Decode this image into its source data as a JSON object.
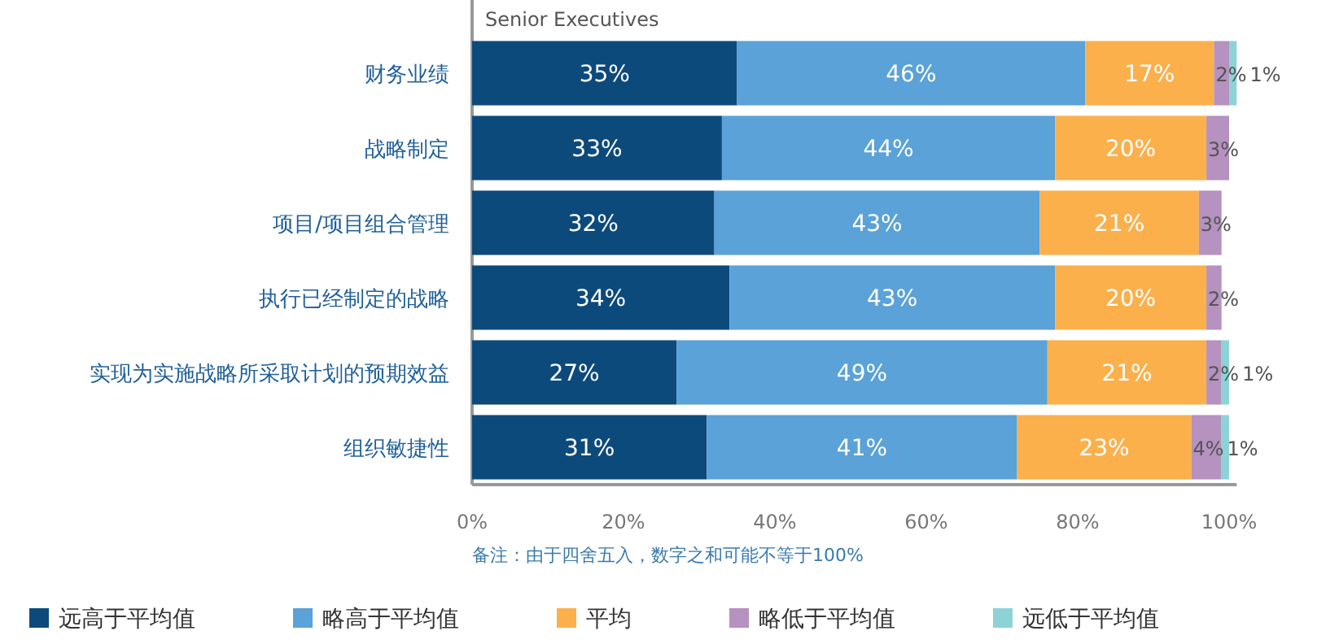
{
  "chart_data": {
    "type": "bar",
    "orientation": "horizontal",
    "stacked": true,
    "title": "Senior Executives",
    "categories": [
      "财务业绩",
      "战略制定",
      "项目/项目组合管理",
      "执行已经制定的战略",
      "实现为实施战略所采取计划的预期效益",
      "组织敏捷性"
    ],
    "series": [
      {
        "name": "远高于平均值",
        "color": "#0d4a7c",
        "values": [
          35,
          33,
          32,
          34,
          27,
          31
        ],
        "value_labels": [
          "35%",
          "33%",
          "32%",
          "34%",
          "27%",
          "31%"
        ]
      },
      {
        "name": "略高于平均值",
        "color": "#5aa2d8",
        "values": [
          46,
          44,
          43,
          43,
          49,
          41
        ],
        "value_labels": [
          "46%",
          "44%",
          "43%",
          "43%",
          "49%",
          "41%"
        ]
      },
      {
        "name": "平均",
        "color": "#fbb04c",
        "values": [
          17,
          20,
          21,
          20,
          21,
          23
        ],
        "value_labels": [
          "17%",
          "20%",
          "21%",
          "20%",
          "21%",
          "23%"
        ]
      },
      {
        "name": "略低于平均值",
        "color": "#b592bf",
        "values": [
          2,
          3,
          3,
          2,
          2,
          4
        ],
        "value_labels": [
          "2%",
          "3%",
          "3%",
          "2%",
          "2%",
          "4%"
        ]
      },
      {
        "name": "远低于平均值",
        "color": "#8dd3d5",
        "values": [
          1,
          null,
          null,
          null,
          1,
          1
        ],
        "value_labels": [
          "1%",
          null,
          null,
          null,
          "1%",
          "1%"
        ]
      }
    ],
    "xlim": [
      0,
      101
    ],
    "xticks": [
      {
        "value": 0,
        "label": "0%"
      },
      {
        "value": 20,
        "label": "20%"
      },
      {
        "value": 40,
        "label": "40%"
      },
      {
        "value": 60,
        "label": "60%"
      },
      {
        "value": 80,
        "label": "80%"
      },
      {
        "value": 100,
        "label": "100%"
      }
    ],
    "annotations": [
      "备注：由于四舍五入，数字之和可能不等于100%"
    ],
    "legend": "bottom",
    "grid": false
  }
}
